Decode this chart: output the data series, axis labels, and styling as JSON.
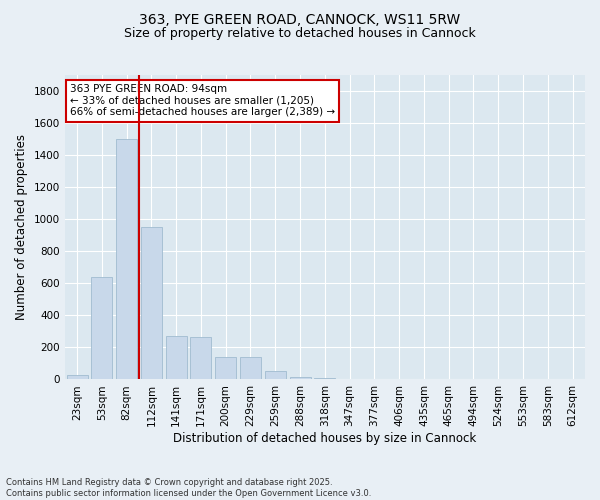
{
  "title_line1": "363, PYE GREEN ROAD, CANNOCK, WS11 5RW",
  "title_line2": "Size of property relative to detached houses in Cannock",
  "xlabel": "Distribution of detached houses by size in Cannock",
  "ylabel": "Number of detached properties",
  "bar_color": "#c8d8ea",
  "bar_edge_color": "#a0bcd0",
  "background_color": "#dce8f0",
  "grid_color": "#ffffff",
  "vline_color": "#cc0000",
  "vline_x": 2.5,
  "categories": [
    "23sqm",
    "53sqm",
    "82sqm",
    "112sqm",
    "141sqm",
    "171sqm",
    "200sqm",
    "229sqm",
    "259sqm",
    "288sqm",
    "318sqm",
    "347sqm",
    "377sqm",
    "406sqm",
    "435sqm",
    "465sqm",
    "494sqm",
    "524sqm",
    "553sqm",
    "583sqm",
    "612sqm"
  ],
  "values": [
    30,
    640,
    1500,
    950,
    270,
    265,
    140,
    140,
    55,
    18,
    8,
    3,
    2,
    0,
    0,
    0,
    0,
    0,
    0,
    0,
    0
  ],
  "ylim": [
    0,
    1900
  ],
  "yticks": [
    0,
    200,
    400,
    600,
    800,
    1000,
    1200,
    1400,
    1600,
    1800
  ],
  "annotation_text": "363 PYE GREEN ROAD: 94sqm\n← 33% of detached houses are smaller (1,205)\n66% of semi-detached houses are larger (2,389) →",
  "annotation_box_color": "#ffffff",
  "annotation_box_edge": "#cc0000",
  "footnote1": "Contains HM Land Registry data © Crown copyright and database right 2025.",
  "footnote2": "Contains public sector information licensed under the Open Government Licence v3.0.",
  "title_fontsize": 10,
  "subtitle_fontsize": 9,
  "axis_label_fontsize": 8.5,
  "tick_fontsize": 7.5,
  "annot_fontsize": 7.5,
  "footnote_fontsize": 6
}
